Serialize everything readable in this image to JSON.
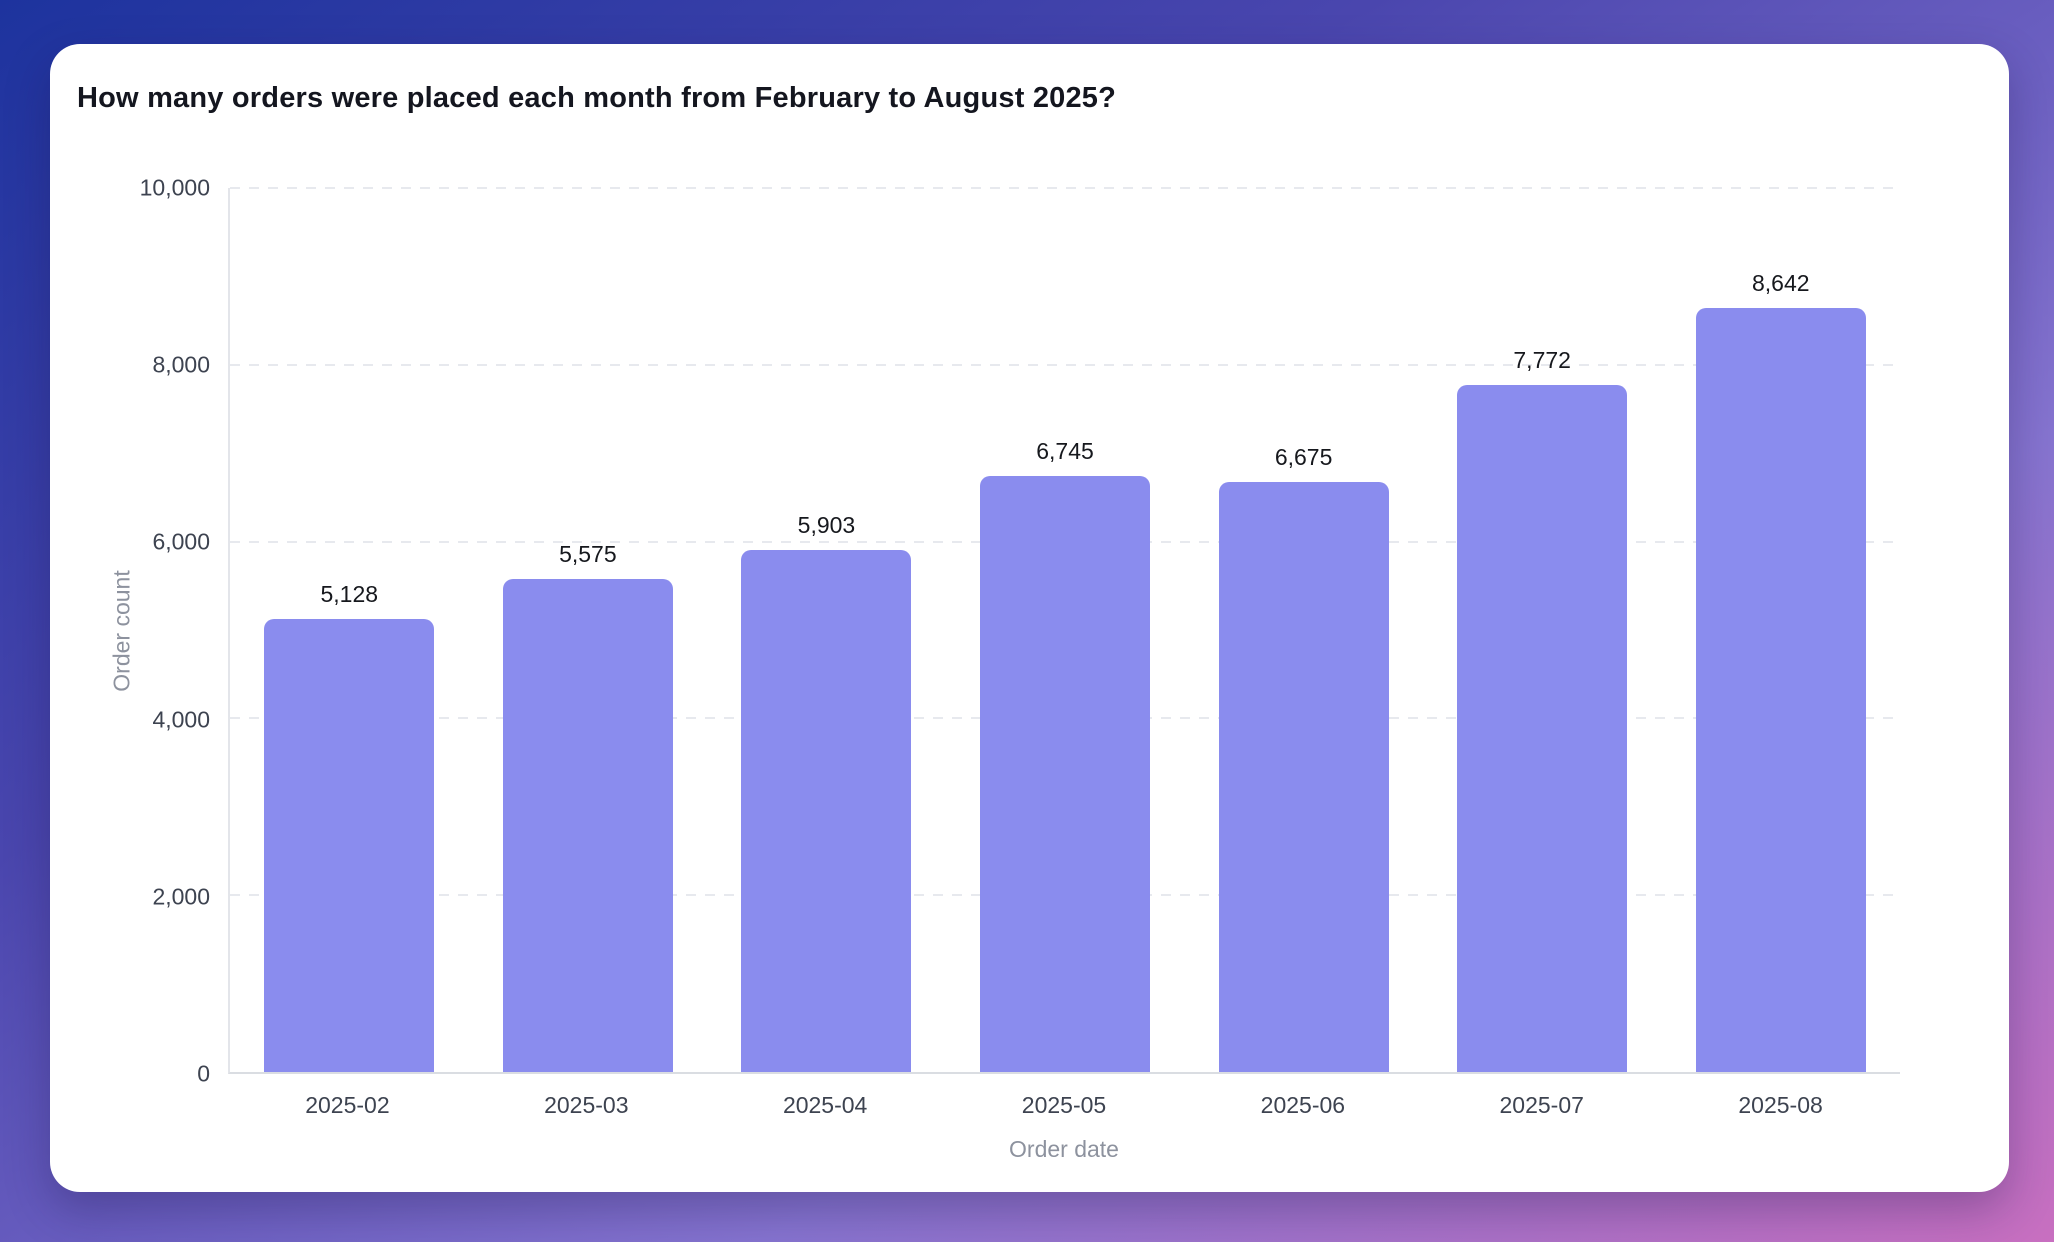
{
  "page": {
    "background_gradient": [
      "#1d339e",
      "#4a46ae",
      "#8674d0",
      "#c86fc0"
    ],
    "card_background": "#ffffff"
  },
  "card": {
    "title": "How many orders were placed each month from February to August 2025?"
  },
  "chart_data": {
    "type": "bar",
    "title": "How many orders were placed each month from February to August 2025?",
    "categories": [
      "2025-02",
      "2025-03",
      "2025-04",
      "2025-05",
      "2025-06",
      "2025-07",
      "2025-08"
    ],
    "values": [
      5128,
      5575,
      5903,
      6745,
      6675,
      7772,
      8642
    ],
    "value_labels": [
      "5,128",
      "5,575",
      "5,903",
      "6,745",
      "6,675",
      "7,772",
      "8,642"
    ],
    "xlabel": "Order date",
    "ylabel": "Order count",
    "ylim": [
      0,
      10000
    ],
    "y_ticks": [
      {
        "value": 0,
        "label": "0"
      },
      {
        "value": 2000,
        "label": "2,000"
      },
      {
        "value": 4000,
        "label": "4,000"
      },
      {
        "value": 6000,
        "label": "6,000"
      },
      {
        "value": 8000,
        "label": "8,000"
      },
      {
        "value": 10000,
        "label": "10,000"
      }
    ],
    "grid": "horizontal-dashed",
    "legend": "none",
    "bar_color": "#8a8cee",
    "value_label_color": "#16181d",
    "tick_label_color": "#3d4350",
    "axis_title_color": "#8d929e"
  }
}
